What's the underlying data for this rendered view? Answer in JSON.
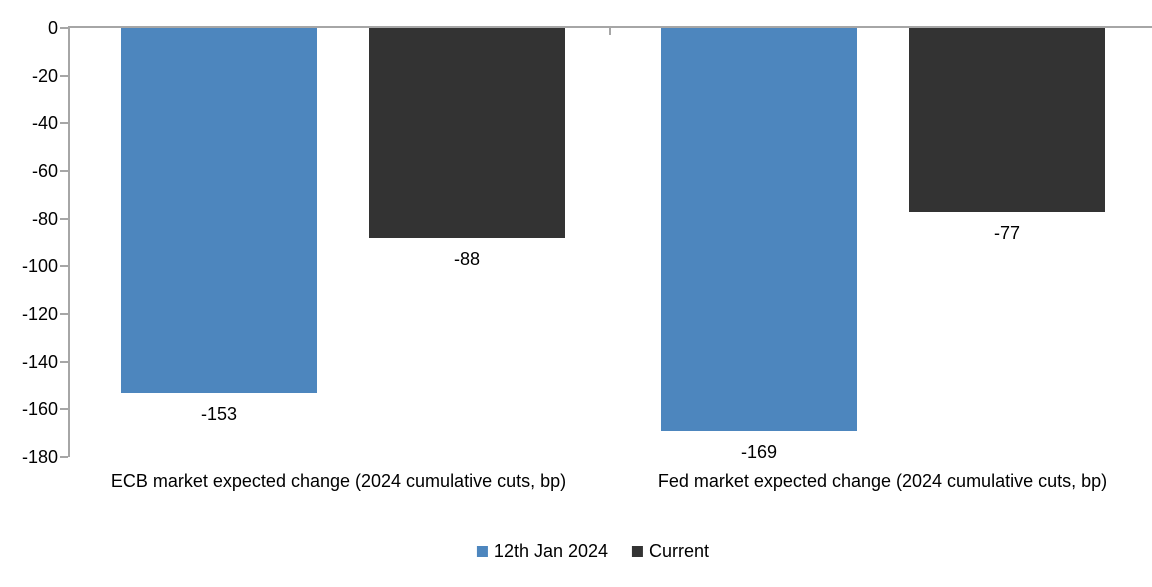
{
  "chart_data": {
    "type": "bar",
    "title": "",
    "xlabel": "",
    "ylabel": "",
    "categories": [
      "ECB market expected change (2024 cumulative cuts, bp)",
      "Fed market expected change (2024 cumulative cuts, bp)"
    ],
    "series": [
      {
        "name": "12th Jan 2024",
        "color": "#4D86BE",
        "values": [
          -153,
          -169
        ]
      },
      {
        "name": "Current",
        "color": "#333333",
        "values": [
          -88,
          -77
        ]
      }
    ],
    "data_labels": [
      "-153",
      "-88",
      "-169",
      "-77"
    ],
    "ylim": [
      -180,
      0
    ],
    "y_ticks": [
      0,
      -20,
      -40,
      -60,
      -80,
      -100,
      -120,
      -140,
      -160,
      -180
    ],
    "grid": false,
    "legend_position": "bottom",
    "axis_color": "#A6A6A6",
    "text_color": "#000000",
    "background_color": "#FFFFFF"
  }
}
